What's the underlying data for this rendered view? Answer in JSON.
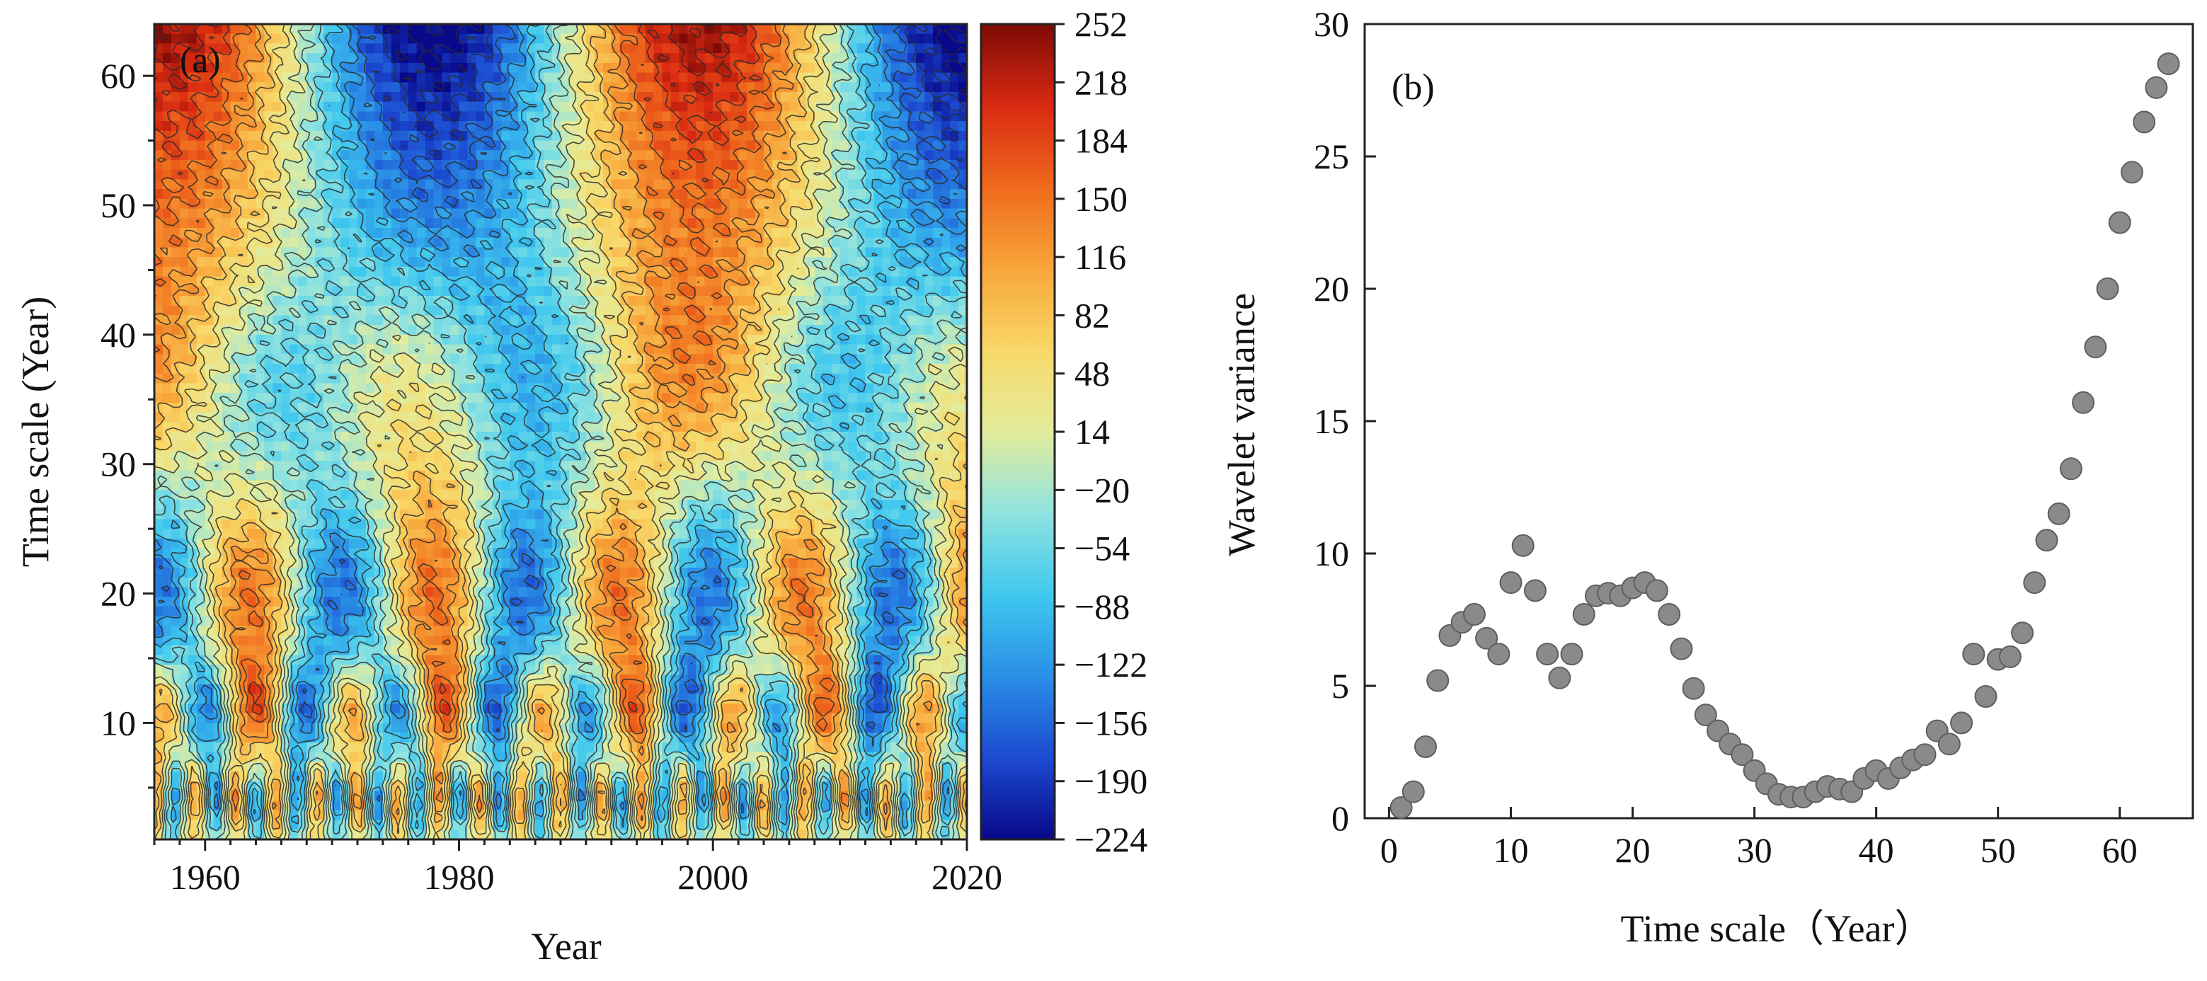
{
  "chart_data": [
    {
      "type": "heatmap",
      "panel_label": "(a)",
      "title": "",
      "xlabel": "Year",
      "ylabel": "Time scale (Year)",
      "xlim": [
        1956,
        2020
      ],
      "ylim": [
        1,
        64
      ],
      "xticks": [
        1960,
        1980,
        2000,
        2020
      ],
      "xtick_labels": [
        "1960",
        "1980",
        "2000",
        "2020"
      ],
      "yticks": [
        10,
        20,
        30,
        40,
        50,
        60
      ],
      "ytick_labels": [
        "10",
        "20",
        "30",
        "40",
        "50",
        "60"
      ],
      "colorbar": {
        "range": [
          -224,
          252
        ],
        "ticks": [
          252,
          218,
          184,
          150,
          116,
          82,
          48,
          14,
          -20,
          -54,
          -88,
          -122,
          -156,
          -190,
          -224
        ],
        "tick_labels": [
          "252",
          "218",
          "184",
          "150",
          "116",
          "82",
          "48",
          "14",
          "−20",
          "−54",
          "−88",
          "−122",
          "−156",
          "−190",
          "−224"
        ],
        "colormap": [
          "#08088a",
          "#1c4bd1",
          "#2a8fe6",
          "#3fc8ef",
          "#8fe3e0",
          "#e3ec9c",
          "#f8d868",
          "#f8a53a",
          "#ef6a1d",
          "#d92a12",
          "#7d0b06"
        ]
      },
      "contour_lines": true,
      "description_features": "real part of Morlet wavelet coefficients; alternating positive/negative oscillation centres"
    },
    {
      "type": "scatter",
      "panel_label": "(b)",
      "title": "",
      "xlabel": "Time scale（Year）",
      "ylabel": "Wavelet variance",
      "xlim": [
        -2,
        66
      ],
      "ylim": [
        0,
        30
      ],
      "xticks": [
        0,
        10,
        20,
        30,
        40,
        50,
        60
      ],
      "xtick_labels": [
        "0",
        "10",
        "20",
        "30",
        "40",
        "50",
        "60"
      ],
      "yticks": [
        0,
        5,
        10,
        15,
        20,
        25,
        30
      ],
      "ytick_labels": [
        "0",
        "5",
        "10",
        "15",
        "20",
        "25",
        "30"
      ],
      "marker_color": "#8a8a8a",
      "x": [
        1,
        2,
        3,
        4,
        5,
        6,
        7,
        8,
        9,
        10,
        11,
        12,
        13,
        14,
        15,
        16,
        17,
        18,
        19,
        20,
        21,
        22,
        23,
        24,
        25,
        26,
        27,
        28,
        29,
        30,
        31,
        32,
        33,
        34,
        35,
        36,
        37,
        38,
        39,
        40,
        41,
        42,
        43,
        44,
        45,
        46,
        47,
        48,
        49,
        50,
        51,
        52,
        53,
        54,
        55,
        56,
        57,
        58,
        59,
        60,
        61,
        62,
        63,
        64
      ],
      "y": [
        0.4,
        1.0,
        2.7,
        5.2,
        6.9,
        7.4,
        7.7,
        6.8,
        6.2,
        8.9,
        10.3,
        8.6,
        6.2,
        5.3,
        6.2,
        7.7,
        8.4,
        8.5,
        8.4,
        8.7,
        8.9,
        8.6,
        7.7,
        6.4,
        4.9,
        3.9,
        3.3,
        2.8,
        2.4,
        1.8,
        1.3,
        0.9,
        0.8,
        0.8,
        1.0,
        1.2,
        1.1,
        1.0,
        1.5,
        1.8,
        1.5,
        1.9,
        2.2,
        2.4,
        3.3,
        2.8,
        3.6,
        6.2,
        4.6,
        6.0,
        6.1,
        7.0,
        8.9,
        10.5,
        11.5,
        13.2,
        15.7,
        17.8,
        20.0,
        22.5,
        24.4,
        26.3,
        27.6,
        28.5
      ]
    }
  ]
}
